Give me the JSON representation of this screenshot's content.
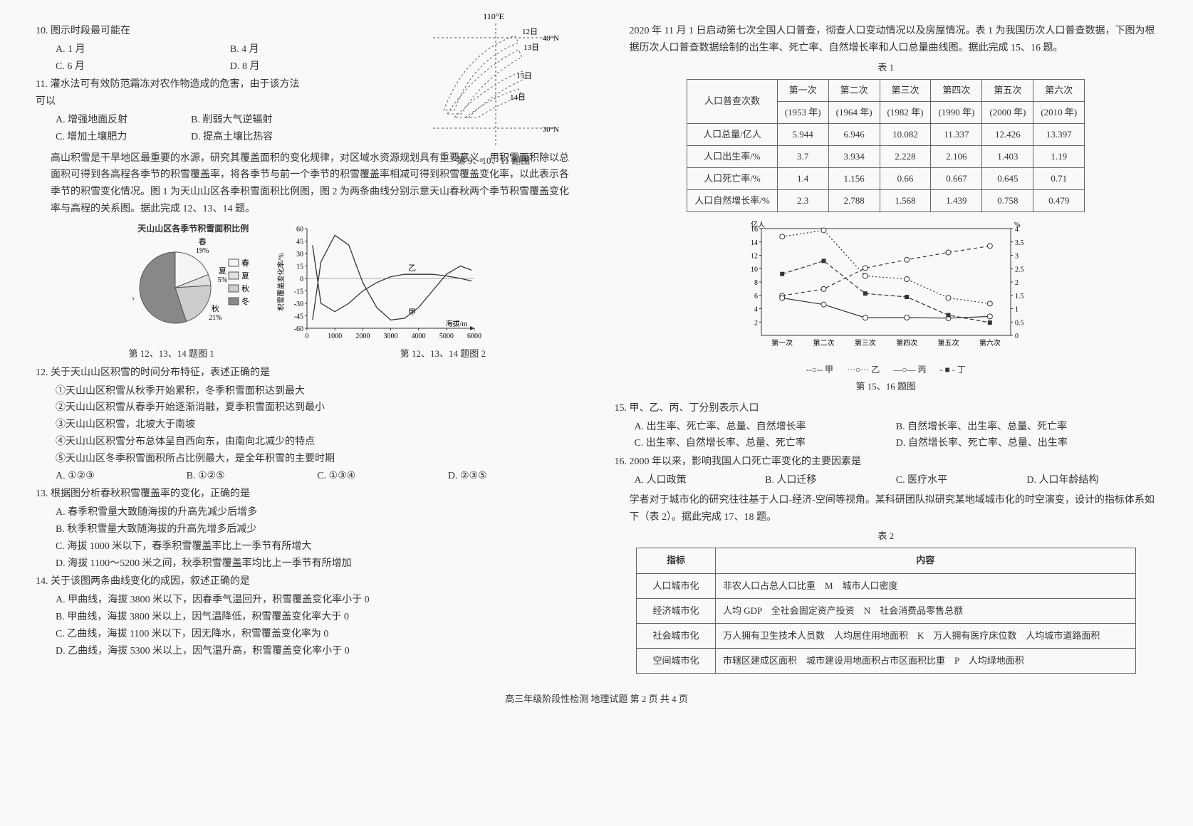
{
  "leftCol": {
    "q10": {
      "stem": "10. 图示时段最可能在",
      "opts": [
        "A. 1 月",
        "B. 4 月",
        "C. 6 月",
        "D. 8 月"
      ]
    },
    "q11": {
      "stem": "11. 灌水法可有效防范霜冻对农作物造成的危害，由于该方法可以",
      "opts": [
        "A. 增强地面反射",
        "B. 削弱大气逆辐射",
        "C. 增加土壤肥力",
        "D. 提高土壤比热容"
      ]
    },
    "mapFig": {
      "lon": "110°E",
      "lat1": "40°N",
      "lat2": "30°N",
      "dates": [
        "12日",
        "13日",
        "15日",
        "14日"
      ],
      "caption": "第 9、10、11 题图"
    },
    "passage1": "高山积雪是干旱地区最重要的水源，研究其覆盖面积的变化规律，对区域水资源规划具有重要意义。用积雪面积除以总面积可得到各高程各季节的积雪覆盖率，将各季节与前一个季节的积雪覆盖率相减可得到积雪覆盖变化率，以此表示各季节的积雪变化情况。图 1 为天山山区各季积雪面积比例图，图 2 为两条曲线分别示意天山春秋两个季节积雪覆盖变化率与高程的关系图。据此完成 12、13、14 题。",
    "pieChart": {
      "title": "天山山区各季节积雪面积比例",
      "slices": [
        {
          "label": "春",
          "value": 19,
          "color": "#f5f5f5"
        },
        {
          "label": "夏",
          "value": 5,
          "color": "#e0e0e0"
        },
        {
          "label": "秋",
          "value": 21,
          "color": "#cccccc"
        },
        {
          "label": "冬",
          "value": 55,
          "color": "#888888"
        }
      ]
    },
    "lineChart": {
      "xlabel": "海拔/m",
      "ylabel": "积雪覆盖变化率/%",
      "ylim": [
        -60,
        60
      ],
      "ystep": 15,
      "xlim": [
        0,
        6000
      ],
      "xstep": 1000,
      "series": {
        "甲": [
          [
            200,
            -50
          ],
          [
            500,
            20
          ],
          [
            1000,
            52
          ],
          [
            1500,
            40
          ],
          [
            2000,
            -5
          ],
          [
            2500,
            -35
          ],
          [
            3000,
            -50
          ],
          [
            3500,
            -48
          ],
          [
            4000,
            -35
          ],
          [
            4500,
            -15
          ],
          [
            5000,
            5
          ],
          [
            5500,
            15
          ],
          [
            5900,
            10
          ]
        ],
        "乙": [
          [
            200,
            40
          ],
          [
            500,
            -30
          ],
          [
            1000,
            -40
          ],
          [
            1500,
            -30
          ],
          [
            2000,
            -15
          ],
          [
            2500,
            -5
          ],
          [
            3000,
            2
          ],
          [
            3500,
            5
          ],
          [
            4000,
            5
          ],
          [
            4500,
            5
          ],
          [
            5000,
            3
          ],
          [
            5500,
            0
          ],
          [
            5900,
            -3
          ]
        ]
      }
    },
    "chartsCap1": "第 12、13、14 题图 1",
    "chartsCap2": "第 12、13、14 题图 2",
    "q12": {
      "stem": "12. 关于天山山区积雪的时间分布特征，表述正确的是",
      "items": [
        "①天山山区积雪从秋季开始累积，冬季积雪面积达到最大",
        "②天山山区积雪从春季开始逐渐消融，夏季积雪面积达到最小",
        "③天山山区积雪，北坡大于南坡",
        "④天山山区积雪分布总体呈自西向东，由南向北减少的特点",
        "⑤天山山区冬季积雪面积所占比例最大，是全年积雪的主要时期"
      ],
      "opts": [
        "A. ①②③",
        "B. ①②⑤",
        "C. ①③④",
        "D. ②③⑤"
      ]
    },
    "q13": {
      "stem": "13. 根据图分析春秋积雪覆盖率的变化，正确的是",
      "opts": [
        "A. 春季积雪量大致随海拔的升高先减少后增多",
        "B. 秋季积雪量大致随海拔的升高先增多后减少",
        "C. 海拔 1000 米以下，春季积雪覆盖率比上一季节有所增大",
        "D. 海拔 1100～5200 米之间，秋季积雪覆盖率均比上一季节有所增加"
      ]
    },
    "q14": {
      "stem": "14. 关于该图两条曲线变化的成因，叙述正确的是",
      "opts": [
        "A. 甲曲线，海拔 3800 米以下，因春季气温回升，积雪覆盖变化率小于 0",
        "B. 甲曲线，海拔 3800 米以上，因气温降低，积雪覆盖变化率大于 0",
        "C. 乙曲线，海拔 1100 米以下，因无降水，积雪覆盖变化率为 0",
        "D. 乙曲线，海拔 5300 米以上，因气温升高，积雪覆盖变化率小于 0"
      ]
    }
  },
  "rightCol": {
    "passage2": "2020 年 11 月 1 日启动第七次全国人口普查，彻查人口变动情况以及房屋情况。表 1 为我国历次人口普查数据，下图为根据历次人口普查数据绘制的出生率、死亡率、自然增长率和人口总量曲线图。据此完成 15、16 题。",
    "table1": {
      "caption": "表 1",
      "headers": [
        "人口普查次数",
        "第一次",
        "第二次",
        "第三次",
        "第四次",
        "第五次",
        "第六次"
      ],
      "years": [
        "",
        "(1953 年)",
        "(1964 年)",
        "(1982 年)",
        "(1990 年)",
        "(2000 年)",
        "(2010 年)"
      ],
      "rows": [
        [
          "人口总量/亿人",
          "5.944",
          "6.946",
          "10.082",
          "11.337",
          "12.426",
          "13.397"
        ],
        [
          "人口出生率/%",
          "3.7",
          "3.934",
          "2.228",
          "2.106",
          "1.403",
          "1.19"
        ],
        [
          "人口死亡率/%",
          "1.4",
          "1.156",
          "0.66",
          "0.667",
          "0.645",
          "0.71"
        ],
        [
          "人口自然增长率/%",
          "2.3",
          "2.788",
          "1.568",
          "1.439",
          "0.758",
          "0.479"
        ]
      ]
    },
    "popChart": {
      "yL_label": "亿人",
      "yL_ticks": [
        2,
        4,
        6,
        8,
        10,
        12,
        14,
        16
      ],
      "yR_label": "%",
      "yR_ticks": [
        0,
        0.5,
        1,
        1.5,
        2,
        2.5,
        3,
        3.5,
        4
      ],
      "xcats": [
        "第一次",
        "第二次",
        "第三次",
        "第四次",
        "第五次",
        "第六次"
      ],
      "series": {
        "甲": {
          "marker": "o-open-dash",
          "vals_L": [
            5.944,
            6.946,
            10.082,
            11.337,
            12.426,
            13.397
          ]
        },
        "乙": {
          "marker": "o-dot",
          "vals_R": [
            3.7,
            3.934,
            2.228,
            2.106,
            1.403,
            1.19
          ]
        },
        "丙": {
          "marker": "o-solid",
          "vals_R": [
            1.4,
            1.156,
            0.66,
            0.667,
            0.645,
            0.71
          ]
        },
        "丁": {
          "marker": "sq-dash",
          "vals_R": [
            2.3,
            2.788,
            1.568,
            1.439,
            0.758,
            0.479
          ]
        }
      },
      "caption": "第 15、16 题图",
      "legend": [
        "--○-- 甲",
        "···○··· 乙",
        "—○— 丙",
        "- ■ - 丁"
      ]
    },
    "q15": {
      "stem": "15. 甲、乙、丙、丁分别表示人口",
      "opts": [
        "A. 出生率、死亡率、总量、自然增长率",
        "B. 自然增长率、出生率、总量、死亡率",
        "C. 出生率、自然增长率、总量、死亡率",
        "D. 自然增长率、死亡率、总量、出生率"
      ]
    },
    "q16": {
      "stem": "16. 2000 年以来，影响我国人口死亡率变化的主要因素是",
      "opts": [
        "A. 人口政策",
        "B. 人口迁移",
        "C. 医疗水平",
        "D. 人口年龄结构"
      ]
    },
    "passage3": "学者对于城市化的研究往往基于人口-经济-空间等视角。某科研团队拟研究某地域城市化的时空演变，设计的指标体系如下（表 2）。据此完成 17、18 题。",
    "table2": {
      "caption": "表 2",
      "headers": [
        "指标",
        "内容"
      ],
      "rows": [
        [
          "人口城市化",
          "非农人口占总人口比重　M　城市人口密度"
        ],
        [
          "经济城市化",
          "人均 GDP　全社会固定资产投资　N　社会消费品零售总额"
        ],
        [
          "社会城市化",
          "万人拥有卫生技术人员数　人均居住用地面积　K　万人拥有医疗床位数　人均城市道路面积"
        ],
        [
          "空间城市化",
          "市辖区建成区面积　城市建设用地面积占市区面积比重　P　人均绿地面积"
        ]
      ]
    }
  },
  "footer": "高三年级阶段性检测 地理试题 第 2 页 共 4 页"
}
